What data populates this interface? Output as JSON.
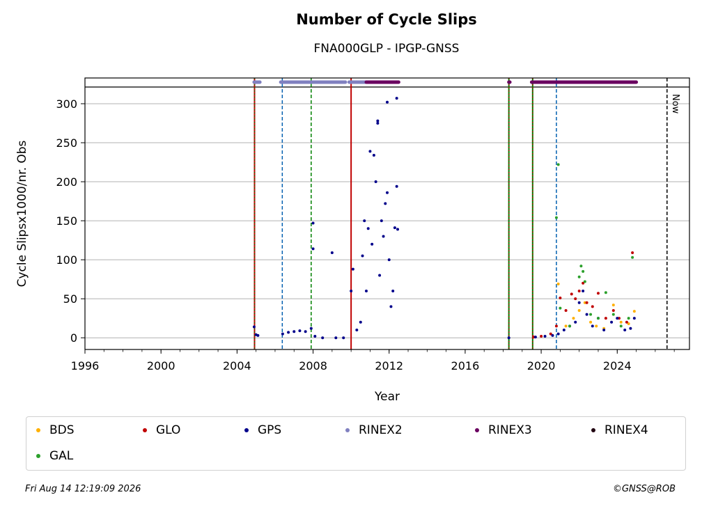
{
  "chart_data": {
    "type": "scatter",
    "title": "Number of Cycle Slips",
    "subtitle": "FNA000GLP - IPGP-GNSS",
    "xlabel": "Year",
    "ylabel": "Cycle Slipsx1000/nr. Obs",
    "xlim": [
      1996,
      2027.8
    ],
    "ylim": [
      -15,
      333
    ],
    "xticks": [
      1996,
      2000,
      2004,
      2008,
      2012,
      2016,
      2020,
      2024
    ],
    "yticks": [
      0,
      50,
      100,
      150,
      200,
      250,
      300
    ],
    "grid": "horizontal",
    "legend_position": "bottom",
    "now_label": "Now",
    "now_year": 2026.62,
    "series": [
      {
        "name": "BDS",
        "color": "#ffb000",
        "points": [
          [
            2020.9,
            69
          ],
          [
            2021.3,
            15
          ],
          [
            2021.7,
            25
          ],
          [
            2022.0,
            35
          ],
          [
            2022.3,
            45
          ],
          [
            2022.6,
            20
          ],
          [
            2022.9,
            15
          ],
          [
            2023.3,
            12
          ],
          [
            2023.8,
            42
          ],
          [
            2024.2,
            20
          ],
          [
            2024.6,
            18
          ],
          [
            2024.9,
            34
          ]
        ]
      },
      {
        "name": "GLO",
        "color": "#c00000",
        "points": [
          [
            2019.6,
            1
          ],
          [
            2020.0,
            2
          ],
          [
            2020.5,
            5
          ],
          [
            2020.8,
            15
          ],
          [
            2021.0,
            51
          ],
          [
            2021.3,
            35
          ],
          [
            2021.6,
            56
          ],
          [
            2021.8,
            50
          ],
          [
            2022.0,
            60
          ],
          [
            2022.2,
            70
          ],
          [
            2022.4,
            45
          ],
          [
            2022.7,
            40
          ],
          [
            2023.0,
            57
          ],
          [
            2023.4,
            25
          ],
          [
            2023.8,
            35
          ],
          [
            2024.1,
            25
          ],
          [
            2024.5,
            20
          ],
          [
            2024.8,
            109
          ]
        ]
      },
      {
        "name": "GPS",
        "color": "#00008b",
        "points": [
          [
            2004.9,
            14
          ],
          [
            2005.0,
            4
          ],
          [
            2005.1,
            3
          ],
          [
            2006.4,
            5
          ],
          [
            2006.7,
            7
          ],
          [
            2007.0,
            8
          ],
          [
            2007.3,
            9
          ],
          [
            2007.6,
            8
          ],
          [
            2007.9,
            12
          ],
          [
            2008.0,
            147
          ],
          [
            2008.0,
            114
          ],
          [
            2008.1,
            2
          ],
          [
            2008.5,
            0
          ],
          [
            2009.0,
            109
          ],
          [
            2009.2,
            0
          ],
          [
            2009.6,
            0
          ],
          [
            2010.0,
            60
          ],
          [
            2010.1,
            88
          ],
          [
            2010.3,
            10
          ],
          [
            2010.5,
            20
          ],
          [
            2010.6,
            105
          ],
          [
            2010.7,
            150
          ],
          [
            2010.8,
            60
          ],
          [
            2010.9,
            140
          ],
          [
            2011.0,
            239
          ],
          [
            2011.1,
            120
          ],
          [
            2011.2,
            234
          ],
          [
            2011.3,
            200
          ],
          [
            2011.4,
            278
          ],
          [
            2011.4,
            275
          ],
          [
            2011.5,
            80
          ],
          [
            2011.6,
            150
          ],
          [
            2011.7,
            130
          ],
          [
            2011.8,
            172
          ],
          [
            2011.9,
            302
          ],
          [
            2011.9,
            186
          ],
          [
            2012.0,
            100
          ],
          [
            2012.1,
            40
          ],
          [
            2012.2,
            60
          ],
          [
            2012.3,
            141
          ],
          [
            2012.4,
            307
          ],
          [
            2012.4,
            194
          ],
          [
            2012.45,
            139
          ],
          [
            2018.3,
            0
          ],
          [
            2019.7,
            1
          ],
          [
            2020.2,
            2
          ],
          [
            2020.6,
            3
          ],
          [
            2020.9,
            5
          ],
          [
            2021.2,
            10
          ],
          [
            2021.5,
            15
          ],
          [
            2021.8,
            20
          ],
          [
            2022.0,
            45
          ],
          [
            2022.2,
            60
          ],
          [
            2022.4,
            30
          ],
          [
            2022.7,
            15
          ],
          [
            2023.0,
            25
          ],
          [
            2023.3,
            10
          ],
          [
            2023.7,
            20
          ],
          [
            2024.0,
            25
          ],
          [
            2024.4,
            10
          ],
          [
            2024.7,
            12
          ],
          [
            2024.9,
            25
          ]
        ]
      },
      {
        "name": "RINEX2",
        "color": "#8080c0",
        "segments": [
          [
            2004.9,
            2005.2
          ],
          [
            2006.3,
            2009.7
          ],
          [
            2009.9,
            2010.8
          ]
        ]
      },
      {
        "name": "RINEX3",
        "color": "#6a0060",
        "segments": [
          [
            2010.8,
            2012.5
          ],
          [
            2018.3,
            2018.35
          ],
          [
            2019.5,
            2025.0
          ]
        ]
      },
      {
        "name": "RINEX4",
        "color": "#200010",
        "segments": []
      },
      {
        "name": "GAL",
        "color": "#2ca02c",
        "points": [
          [
            2020.8,
            154
          ],
          [
            2020.9,
            222
          ],
          [
            2021.0,
            38
          ],
          [
            2021.5,
            15
          ],
          [
            2022.0,
            78
          ],
          [
            2022.1,
            92
          ],
          [
            2022.2,
            85
          ],
          [
            2022.3,
            72
          ],
          [
            2022.6,
            30
          ],
          [
            2023.0,
            25
          ],
          [
            2023.4,
            58
          ],
          [
            2023.8,
            30
          ],
          [
            2024.2,
            15
          ],
          [
            2024.6,
            25
          ],
          [
            2024.8,
            103
          ]
        ]
      }
    ],
    "vlines": [
      {
        "x": 2004.92,
        "style": "solid-dotted",
        "colors": [
          "#c00000",
          "#008000"
        ]
      },
      {
        "x": 2006.38,
        "style": "dashed",
        "colors": [
          "#0060b0"
        ]
      },
      {
        "x": 2007.9,
        "style": "dashed",
        "colors": [
          "#008000"
        ]
      },
      {
        "x": 2010.0,
        "style": "solid",
        "colors": [
          "#c00000"
        ]
      },
      {
        "x": 2018.3,
        "style": "solid-dotted",
        "colors": [
          "#008000",
          "#c00000"
        ]
      },
      {
        "x": 2019.55,
        "style": "solid-dotted",
        "colors": [
          "#008000",
          "#c00000"
        ]
      },
      {
        "x": 2020.8,
        "style": "dashed",
        "colors": [
          "#0060b0"
        ]
      }
    ]
  },
  "legend": [
    {
      "label": "BDS",
      "color": "#ffb000"
    },
    {
      "label": "GLO",
      "color": "#c00000"
    },
    {
      "label": "GPS",
      "color": "#00008b"
    },
    {
      "label": "RINEX2",
      "color": "#8080c0"
    },
    {
      "label": "RINEX3",
      "color": "#6a0060"
    },
    {
      "label": "RINEX4",
      "color": "#200010"
    },
    {
      "label": "GAL",
      "color": "#2ca02c"
    }
  ],
  "footer": {
    "timestamp": "Fri Aug 14 12:19:09 2026",
    "credit": "©GNSS@ROB"
  }
}
